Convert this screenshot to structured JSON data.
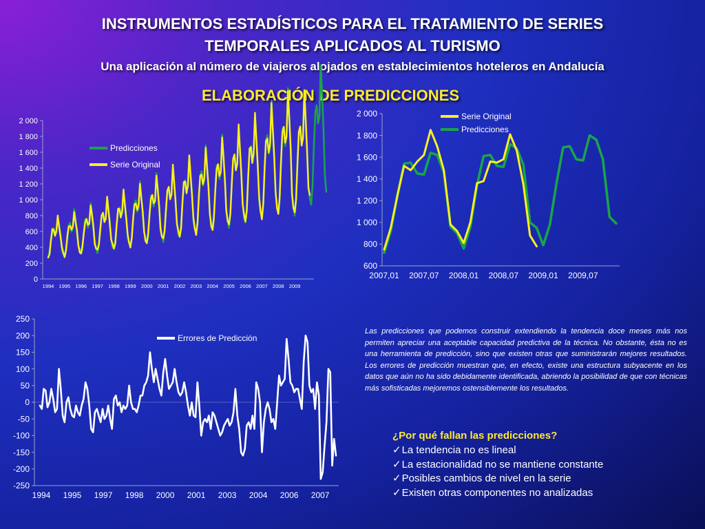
{
  "slide": {
    "title_line1": "INSTRUMENTOS ESTADÍSTICOS PARA EL TRATAMIENTO DE SERIES",
    "title_line2": "TEMPORALES APLICADOS AL TURISMO",
    "subtitle": "Una aplicación al número de viajeros alojados en establecimientos hoteleros en Andalucía",
    "section_title": "ELABORACIÓN DE PREDICCIONES",
    "description": "Las predicciones que podemos construir extendiendo la tendencia doce meses más nos permiten apreciar una aceptable capacidad predictiva de la técnica. No obstante, ésta no es una herramienta de predicción, sino que existen otras que suministrarán mejores resultados. Los errores de predicción muestran que, en efecto, existe una estructura subyacente en los datos que aún no ha sido debidamente identificada, abriendo la posibilidad de que con técnicas más sofisticadas mejoremos ostensiblemente los resultados.",
    "why_title": "¿Por qué fallan las predicciones?",
    "check_icon": "✓",
    "why_items": [
      "La tendencia no es lineal",
      "La estacionalidad no se mantiene constante",
      "Posibles cambios de nivel en la serie",
      "Existen otras componentes no analizadas"
    ],
    "colors": {
      "title": "#ffffff",
      "section": "#ffea2e",
      "green": "#1aa34a",
      "yellow": "#ffee22",
      "white": "#ffffff"
    }
  },
  "chart_data": [
    {
      "type": "line",
      "ylim": [
        0,
        2000
      ],
      "yticks": [
        "0",
        "200",
        "400",
        "600",
        "800",
        "1 000",
        "1 200",
        "1 400",
        "1 600",
        "1 800",
        "2 000"
      ],
      "xticks": [
        "1994",
        "1995",
        "1996",
        "1997",
        "1998",
        "1999",
        "2000",
        "2001",
        "2002",
        "2003",
        "2004",
        "2005",
        "2006",
        "2007",
        "2008",
        "2009"
      ],
      "legend_position": "top-left",
      "series": [
        {
          "name": "Predicciones",
          "color": "#1aa34a",
          "months_from_jan_1994": 204
        },
        {
          "name": "Serie Original",
          "color": "#ffee22",
          "months_from_jan_1994": 192
        }
      ]
    },
    {
      "type": "line",
      "ylim": [
        600,
        2000
      ],
      "yticks": [
        "600",
        "800",
        "1 000",
        "1 200",
        "1 400",
        "1 600",
        "1 800",
        "2 000"
      ],
      "xticks": [
        "2007,01",
        "2007,07",
        "2008,01",
        "2008,07",
        "2009,01",
        "2009,07"
      ],
      "legend_position": "top-center",
      "series": [
        {
          "name": "Serie Original",
          "color": "#ffee22",
          "values": [
            750,
            950,
            1250,
            1520,
            1480,
            1560,
            1620,
            1850,
            1700,
            1480,
            980,
            920,
            810,
            1000,
            1360,
            1380,
            1560,
            1550,
            1580,
            1810,
            1660,
            1350,
            880,
            780
          ]
        },
        {
          "name": "Predicciones",
          "color": "#1aa34a",
          "values": [
            720,
            920,
            1250,
            1540,
            1550,
            1450,
            1440,
            1640,
            1620,
            1460,
            960,
            900,
            760,
            960,
            1340,
            1610,
            1620,
            1520,
            1510,
            1720,
            1680,
            1530,
            1000,
            950,
            790,
            980,
            1360,
            1690,
            1700,
            1580,
            1570,
            1800,
            1760,
            1580,
            1050,
            990
          ]
        }
      ]
    },
    {
      "type": "line",
      "ylim": [
        -250,
        250
      ],
      "yticks": [
        "-250",
        "-200",
        "-150",
        "-100",
        "-50",
        "0",
        "50",
        "100",
        "150",
        "200",
        "250"
      ],
      "xticks": [
        "1994",
        "1995",
        "1997",
        "1998",
        "2000",
        "2001",
        "2003",
        "2004",
        "2006",
        "2007"
      ],
      "legend_position": "top-center",
      "series": [
        {
          "name": "Errores de Predicción",
          "color": "#ffffff",
          "values": [
            -10,
            -20,
            40,
            35,
            -15,
            0,
            40,
            10,
            -30,
            -20,
            100,
            40,
            -40,
            -60,
            0,
            15,
            -20,
            -40,
            -45,
            -10,
            -30,
            -40,
            -10,
            10,
            60,
            40,
            -10,
            -80,
            -90,
            -30,
            -20,
            -40,
            -60,
            -20,
            -50,
            -40,
            -10,
            -50,
            -80,
            10,
            20,
            -10,
            0,
            -30,
            -10,
            -20,
            -10,
            50,
            0,
            -20,
            -20,
            -30,
            -10,
            20,
            20,
            50,
            60,
            80,
            150,
            100,
            60,
            100,
            70,
            40,
            20,
            90,
            130,
            80,
            40,
            50,
            60,
            100,
            60,
            30,
            20,
            30,
            60,
            30,
            -10,
            -40,
            0,
            -40,
            -45,
            60,
            -10,
            -100,
            -60,
            -50,
            -60,
            -40,
            -80,
            -30,
            -40,
            -60,
            -80,
            -100,
            -90,
            -70,
            -60,
            -50,
            -70,
            -60,
            -30,
            40,
            -40,
            -80,
            -150,
            -160,
            -140,
            -70,
            -60,
            -80,
            -40,
            -80,
            60,
            40,
            0,
            -150,
            -60,
            -20,
            0,
            -20,
            -60,
            -50,
            -80,
            0,
            80,
            50,
            60,
            70,
            190,
            130,
            60,
            50,
            30,
            40,
            40,
            10,
            -20,
            120,
            200,
            180,
            50,
            30,
            40,
            -20,
            60,
            20,
            -230,
            -210,
            -130,
            -60,
            100,
            90,
            -190,
            -110,
            -160
          ]
        }
      ]
    }
  ]
}
